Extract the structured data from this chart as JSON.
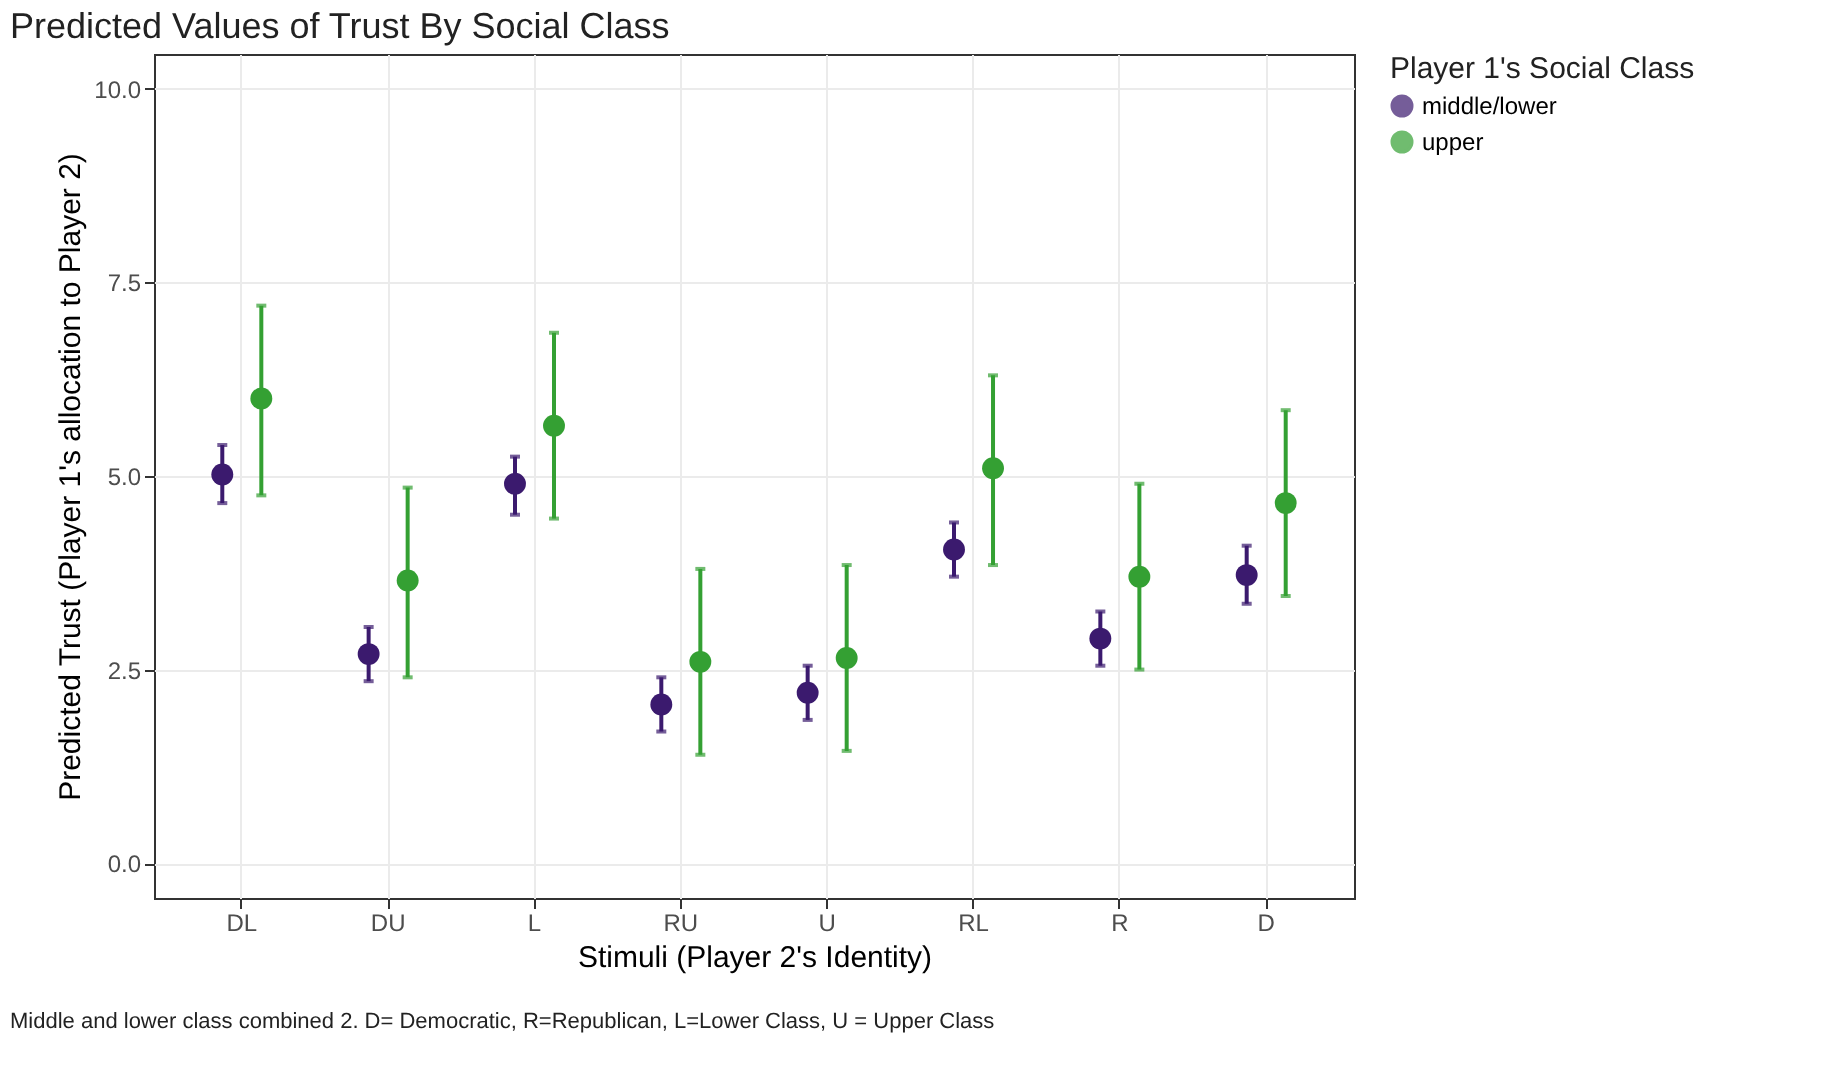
{
  "chart_data": {
    "type": "scatter",
    "title": "Predicted Values of Trust By Social Class",
    "xlabel": "Stimuli (Player 2's Identity)",
    "ylabel": "Predicted Trust (Player 1's allocation to Player 2)",
    "legend_title": "Player 1's Social Class",
    "legend": "right",
    "grid": true,
    "marker": "circle",
    "categories": [
      "DL",
      "DU",
      "L",
      "RU",
      "U",
      "RL",
      "R",
      "D"
    ],
    "ylim": [
      -0.45,
      10.45
    ],
    "yticks": [
      {
        "value": 0,
        "label": "0.0"
      },
      {
        "value": 2.5,
        "label": "2.5"
      },
      {
        "value": 5,
        "label": "5.0"
      },
      {
        "value": 7.5,
        "label": "7.5"
      },
      {
        "value": 10,
        "label": "10.0"
      }
    ],
    "series": [
      {
        "name": "middle/lower",
        "color": "#3b1a6e",
        "values": [
          5.02,
          2.7,
          4.9,
          2.05,
          2.2,
          4.05,
          2.9,
          3.72
        ],
        "errors": [
          [
            4.65,
            5.4
          ],
          [
            2.35,
            3.05
          ],
          [
            4.5,
            5.25
          ],
          [
            1.7,
            2.4
          ],
          [
            1.85,
            2.55
          ],
          [
            3.7,
            4.4
          ],
          [
            2.55,
            3.25
          ],
          [
            3.35,
            4.1
          ]
        ]
      },
      {
        "name": "upper",
        "color": "#34a033",
        "values": [
          6.0,
          3.65,
          5.65,
          2.6,
          2.65,
          5.1,
          3.7,
          4.65
        ],
        "errors": [
          [
            4.75,
            7.2
          ],
          [
            2.4,
            4.85
          ],
          [
            4.45,
            6.85
          ],
          [
            1.4,
            3.8
          ],
          [
            1.45,
            3.85
          ],
          [
            3.85,
            6.3
          ],
          [
            2.5,
            4.9
          ],
          [
            3.45,
            5.85
          ]
        ]
      }
    ],
    "annotations": [
      "Middle and lower class combined 2. D= Democratic, R=Republican, L=Lower Class, U = Upper Class"
    ]
  }
}
